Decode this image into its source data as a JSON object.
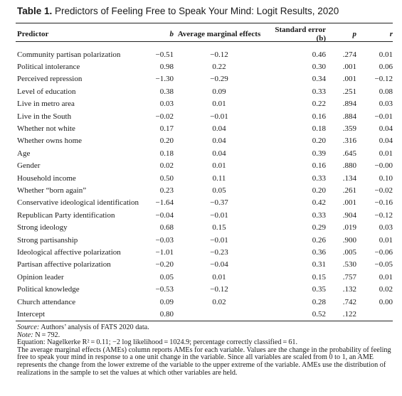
{
  "caption": {
    "label": "Table 1.",
    "text": " Predictors of Feeling Free to Speak Your Mind: Logit Results, 2020"
  },
  "headers": {
    "predictor": "Predictor",
    "b": "b",
    "ame": "Average marginal effects",
    "se": "Standard error (b)",
    "p": "p",
    "r": "r"
  },
  "rows": [
    {
      "predictor": "Community partisan polarization",
      "b": "−0.51",
      "ame": "−0.12",
      "se": "0.46",
      "p": ".274",
      "r": "0.01"
    },
    {
      "predictor": "Political intolerance",
      "b": "0.98",
      "ame": "0.22",
      "se": "0.30",
      "p": ".001",
      "r": "0.06"
    },
    {
      "predictor": "Perceived repression",
      "b": "−1.30",
      "ame": "−0.29",
      "se": "0.34",
      "p": ".001",
      "r": "−0.12"
    },
    {
      "predictor": "Level of education",
      "b": "0.38",
      "ame": "0.09",
      "se": "0.33",
      "p": ".251",
      "r": "0.08"
    },
    {
      "predictor": "Live in metro area",
      "b": "0.03",
      "ame": "0.01",
      "se": "0.22",
      "p": ".894",
      "r": "0.03"
    },
    {
      "predictor": "Live in the South",
      "b": "−0.02",
      "ame": "−0.01",
      "se": "0.16",
      "p": ".884",
      "r": "−0.01"
    },
    {
      "predictor": "Whether not white",
      "b": "0.17",
      "ame": "0.04",
      "se": "0.18",
      "p": ".359",
      "r": "0.04"
    },
    {
      "predictor": "Whether owns home",
      "b": "0.20",
      "ame": "0.04",
      "se": "0.20",
      "p": ".316",
      "r": "0.04"
    },
    {
      "predictor": "Age",
      "b": "0.18",
      "ame": "0.04",
      "se": "0.39",
      "p": ".645",
      "r": "0.01"
    },
    {
      "predictor": "Gender",
      "b": "0.02",
      "ame": "0.01",
      "se": "0.16",
      "p": ".880",
      "r": "−0.00"
    },
    {
      "predictor": "Household income",
      "b": "0.50",
      "ame": "0.11",
      "se": "0.33",
      "p": ".134",
      "r": "0.10"
    },
    {
      "predictor": "Whether “born again”",
      "b": "0.23",
      "ame": "0.05",
      "se": "0.20",
      "p": ".261",
      "r": "−0.02"
    },
    {
      "predictor": "Conservative ideological identification",
      "b": "−1.64",
      "ame": "−0.37",
      "se": "0.42",
      "p": ".001",
      "r": "−0.16"
    },
    {
      "predictor": "Republican Party identification",
      "b": "−0.04",
      "ame": "−0.01",
      "se": "0.33",
      "p": ".904",
      "r": "−0.12"
    },
    {
      "predictor": "Strong ideology",
      "b": "0.68",
      "ame": "0.15",
      "se": "0.29",
      "p": ".019",
      "r": "0.03"
    },
    {
      "predictor": "Strong partisanship",
      "b": "−0.03",
      "ame": "−0.01",
      "se": "0.26",
      "p": ".900",
      "r": "0.01"
    },
    {
      "predictor": "Ideological affective polarization",
      "b": "−1.01",
      "ame": "−0.23",
      "se": "0.36",
      "p": ".005",
      "r": "−0.06"
    },
    {
      "predictor": "Partisan affective polarization",
      "b": "−0.20",
      "ame": "−0.04",
      "se": "0.31",
      "p": ".530",
      "r": "−0.05"
    },
    {
      "predictor": "Opinion leader",
      "b": "0.05",
      "ame": "0.01",
      "se": "0.15",
      "p": ".757",
      "r": "0.01"
    },
    {
      "predictor": "Political knowledge",
      "b": "−0.53",
      "ame": "−0.12",
      "se": "0.35",
      "p": ".132",
      "r": "0.02"
    },
    {
      "predictor": "Church attendance",
      "b": "0.09",
      "ame": "0.02",
      "se": "0.28",
      "p": ".742",
      "r": "0.00"
    },
    {
      "predictor": "Intercept",
      "b": "0.80",
      "ame": "",
      "se": "0.52",
      "p": ".122",
      "r": ""
    }
  ],
  "notes": {
    "source_label": "Source:",
    "source_text": " Authors’ analysis of FATS 2020 data.",
    "note_label": "Note:",
    "note_text": " N = 792.",
    "equation": "Equation: Nagelkerke R² = 0.11; −2 log likelihood = 1024.9; percentage correctly classified = 61.",
    "ame_explanation": "The average marginal effects (AMEs) column reports AMEs for each variable. Values are the change in the probability of feeling free to speak your mind in response to a one unit change in the variable. Since all variables are scaled from 0 to 1, an AME represents the change from the lower extreme of the variable to the upper extreme of the variable. AMEs use the distribution of realizations in the sample to set the values at which other variables are held."
  }
}
